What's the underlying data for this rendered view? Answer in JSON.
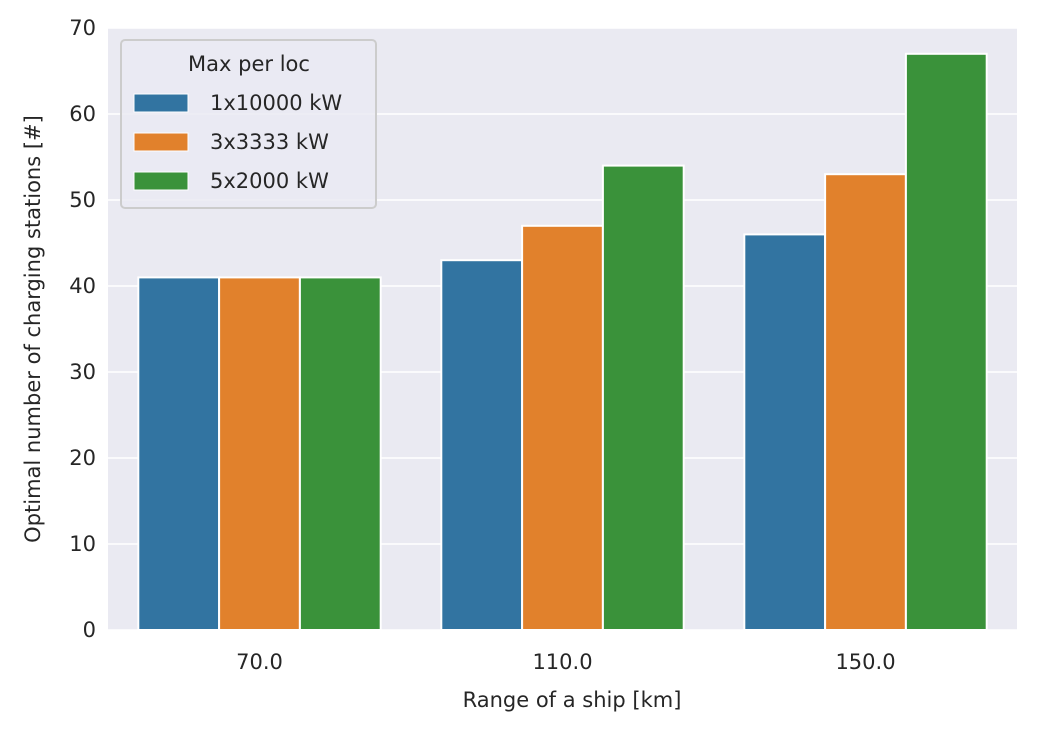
{
  "chart_data": {
    "type": "bar",
    "categories": [
      "70.0",
      "110.0",
      "150.0"
    ],
    "series": [
      {
        "name": "1x10000 kW",
        "values": [
          41,
          43,
          46
        ]
      },
      {
        "name": "3x3333 kW",
        "values": [
          41,
          47,
          53
        ]
      },
      {
        "name": "5x2000 kW",
        "values": [
          41,
          54,
          67
        ]
      }
    ],
    "title": "",
    "xlabel": "Range of a ship [km]",
    "ylabel": "Optimal number of charging stations [#]",
    "ylim": [
      0,
      70
    ],
    "yticks": [
      "0",
      "10",
      "20",
      "30",
      "40",
      "50",
      "60",
      "70"
    ],
    "legend_title": "Max per loc",
    "legend_position": "top-left",
    "grid": true,
    "colors": {
      "background": "#eaeaf2",
      "grid": "#ffffff",
      "series": [
        "#3274a1",
        "#e1812c",
        "#3a923a"
      ]
    }
  }
}
